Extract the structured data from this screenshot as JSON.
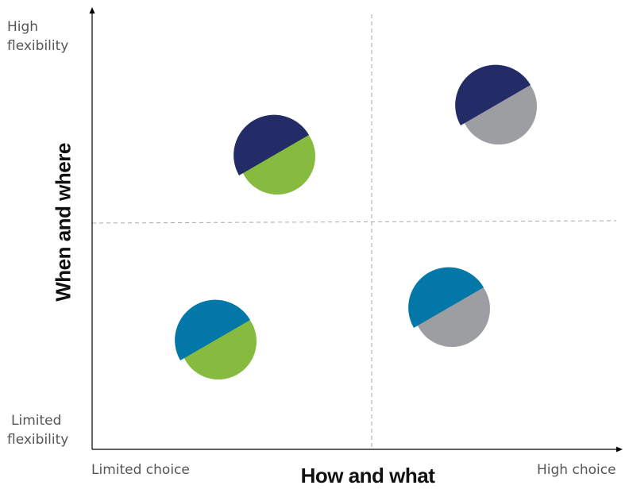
{
  "axes": {
    "y": {
      "title": "When and where",
      "high_label": [
        "High",
        "flexibility"
      ],
      "low_label": [
        "Limited",
        "flexibility"
      ]
    },
    "x": {
      "title": "How and what",
      "low_label": "Limited choice",
      "high_label": "High choice"
    }
  },
  "colors": {
    "navy": "#232c67",
    "green": "#86bb40",
    "blue": "#0277a8",
    "gray": "#9c9ea1",
    "axis": "#000000",
    "divider": "#aaaaaa"
  },
  "quadrants": [
    {
      "position": "top-left",
      "top_color": "navy",
      "bottom_color": "green"
    },
    {
      "position": "top-right",
      "top_color": "navy",
      "bottom_color": "gray"
    },
    {
      "position": "bottom-left",
      "top_color": "blue",
      "bottom_color": "green"
    },
    {
      "position": "bottom-right",
      "top_color": "blue",
      "bottom_color": "gray"
    }
  ]
}
